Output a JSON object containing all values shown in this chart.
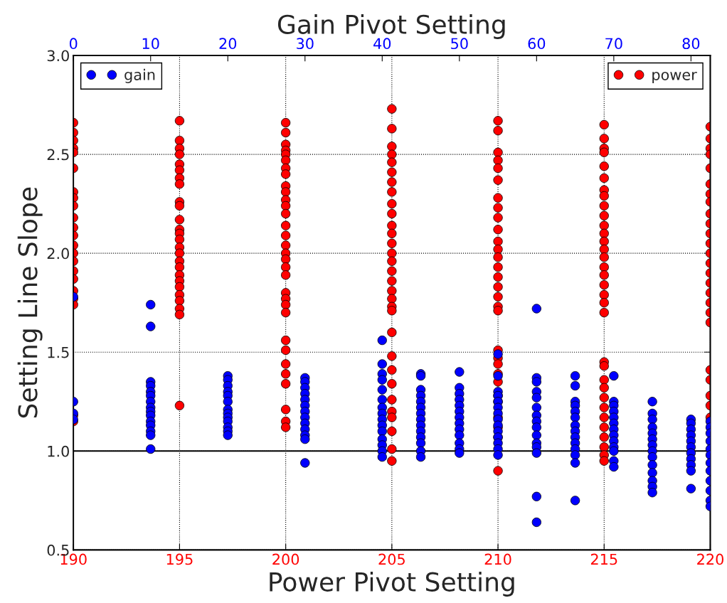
{
  "chart_data": {
    "type": "scatter",
    "xlabel": "Power Pivot Setting",
    "x2label": "Gain Pivot Setting",
    "ylabel": "Setting Line Slope",
    "xlim": [
      190,
      220
    ],
    "xticks": [
      190,
      195,
      200,
      205,
      210,
      215,
      220
    ],
    "x2lim": [
      0,
      82.5
    ],
    "x2ticks": [
      0,
      10,
      20,
      30,
      40,
      50,
      60,
      70,
      80
    ],
    "ylim": [
      0.5,
      3.0
    ],
    "yticks": [
      0.5,
      {
        "value": 1,
        "label": "1.0"
      },
      1.5,
      {
        "value": 2,
        "label": "2.0"
      },
      2.5,
      {
        "value": 3,
        "label": "3.0"
      }
    ],
    "grid": true,
    "legend": "top",
    "marker": "circle",
    "ref_lines": [
      {
        "axis": "y",
        "value": 1.0,
        "color": "#000000",
        "line_style": "solid"
      }
    ],
    "series": [
      {
        "name": "power",
        "color": "#ff0000",
        "x": [
          190,
          190,
          190,
          190,
          190,
          190,
          190,
          190,
          190,
          190,
          190,
          190,
          190,
          190,
          190,
          190,
          190,
          190,
          190,
          190,
          190,
          190,
          195,
          195,
          195,
          195,
          195,
          195,
          195,
          195,
          195,
          195,
          195,
          195,
          195,
          195,
          195,
          195,
          195,
          195,
          195,
          195,
          195,
          195,
          195,
          195,
          195,
          195,
          200,
          200,
          200,
          200,
          200,
          200,
          200,
          200,
          200,
          200,
          200,
          200,
          200,
          200,
          200,
          200,
          200,
          200,
          200,
          200,
          200,
          200,
          200,
          200,
          200,
          200,
          200,
          200,
          200,
          200,
          200,
          200,
          205,
          205,
          205,
          205,
          205,
          205,
          205,
          205,
          205,
          205,
          205,
          205,
          205,
          205,
          205,
          205,
          205,
          205,
          205,
          205,
          205,
          205,
          205,
          205,
          205,
          205,
          205,
          205,
          205,
          205,
          205,
          210,
          210,
          210,
          210,
          210,
          210,
          210,
          210,
          210,
          210,
          210,
          210,
          210,
          210,
          210,
          210,
          210,
          210,
          210,
          210,
          210,
          210,
          210,
          210,
          210,
          210,
          210,
          210,
          210,
          210,
          215,
          215,
          215,
          215,
          215,
          215,
          215,
          215,
          215,
          215,
          215,
          215,
          215,
          215,
          215,
          215,
          215,
          215,
          215,
          215,
          215,
          215,
          215,
          215,
          215,
          215,
          215,
          215,
          215,
          215,
          215,
          215,
          215,
          220,
          220,
          220,
          220,
          220,
          220,
          220,
          220,
          220,
          220,
          220,
          220,
          220,
          220,
          220,
          220,
          220,
          220,
          220,
          220,
          220,
          220,
          220,
          220,
          220
        ],
        "values": [
          2.66,
          2.61,
          2.57,
          2.53,
          2.51,
          2.43,
          2.31,
          2.28,
          2.24,
          2.18,
          2.13,
          2.09,
          2.04,
          2.0,
          1.96,
          1.91,
          1.87,
          1.81,
          1.77,
          1.74,
          1.18,
          1.15,
          2.67,
          2.57,
          2.53,
          2.5,
          2.45,
          2.42,
          2.38,
          2.35,
          2.26,
          2.24,
          2.17,
          2.12,
          2.1,
          2.07,
          2.03,
          2.0,
          1.96,
          1.93,
          1.89,
          1.86,
          1.83,
          1.79,
          1.76,
          1.72,
          1.69,
          1.23,
          2.66,
          2.61,
          2.55,
          2.52,
          2.5,
          2.47,
          2.43,
          2.4,
          2.34,
          2.31,
          2.27,
          2.24,
          2.2,
          2.14,
          2.09,
          2.04,
          2.0,
          1.97,
          1.93,
          1.89,
          1.8,
          1.77,
          1.74,
          1.7,
          1.56,
          1.51,
          1.44,
          1.39,
          1.34,
          1.21,
          1.15,
          1.12,
          2.73,
          2.63,
          2.54,
          2.5,
          2.46,
          2.41,
          2.36,
          2.31,
          2.25,
          2.2,
          2.14,
          2.1,
          2.05,
          2.0,
          1.96,
          1.91,
          1.86,
          1.81,
          1.77,
          1.73,
          1.71,
          1.6,
          1.48,
          1.41,
          1.34,
          1.26,
          1.2,
          1.17,
          1.1,
          1.01,
          0.95,
          2.67,
          2.62,
          2.51,
          2.47,
          2.43,
          2.37,
          2.28,
          2.23,
          2.18,
          2.12,
          2.06,
          2.02,
          1.98,
          1.93,
          1.88,
          1.83,
          1.78,
          1.73,
          1.71,
          1.51,
          1.47,
          1.44,
          1.39,
          1.35,
          1.28,
          1.25,
          1.17,
          1.12,
          1.07,
          0.9,
          2.65,
          2.58,
          2.53,
          2.51,
          2.44,
          2.38,
          2.32,
          2.29,
          2.24,
          2.19,
          2.14,
          2.1,
          2.06,
          2.02,
          1.98,
          1.93,
          1.89,
          1.84,
          1.79,
          1.75,
          1.7,
          1.45,
          1.43,
          1.36,
          1.32,
          1.27,
          1.22,
          1.17,
          1.12,
          1.07,
          1.02,
          0.98,
          0.95,
          2.64,
          2.58,
          2.53,
          2.5,
          2.43,
          2.35,
          2.3,
          2.26,
          2.2,
          2.15,
          2.1,
          2.05,
          2.0,
          1.95,
          1.9,
          1.85,
          1.8,
          1.75,
          1.7,
          1.65,
          1.41,
          1.36,
          1.28,
          1.23,
          1.17
        ]
      },
      {
        "name": "gain",
        "color": "#0000ff",
        "axis": "x2",
        "x": [
          0,
          0,
          0,
          0,
          10,
          10,
          10,
          10,
          10,
          10,
          10,
          10,
          10,
          10,
          10,
          10,
          10,
          10,
          10,
          20,
          20,
          20,
          20,
          20,
          20,
          20,
          20,
          20,
          20,
          20,
          20,
          20,
          30,
          30,
          30,
          30,
          30,
          30,
          30,
          30,
          30,
          30,
          30,
          30,
          30,
          40,
          40,
          40,
          40,
          40,
          40,
          40,
          40,
          40,
          40,
          40,
          40,
          40,
          40,
          40,
          45,
          45,
          45,
          45,
          45,
          45,
          45,
          45,
          45,
          45,
          45,
          45,
          45,
          45,
          50,
          50,
          50,
          50,
          50,
          50,
          50,
          50,
          50,
          50,
          50,
          50,
          50,
          55,
          55,
          55,
          55,
          55,
          55,
          55,
          55,
          55,
          55,
          55,
          55,
          55,
          55,
          60,
          60,
          60,
          60,
          60,
          60,
          60,
          60,
          60,
          60,
          60,
          60,
          60,
          60,
          60,
          65,
          65,
          65,
          65,
          65,
          65,
          65,
          65,
          65,
          65,
          65,
          65,
          65,
          65,
          70,
          70,
          70,
          70,
          70,
          70,
          70,
          70,
          70,
          70,
          70,
          70,
          70,
          75,
          75,
          75,
          75,
          75,
          75,
          75,
          75,
          75,
          75,
          75,
          75,
          75,
          75,
          80,
          80,
          80,
          80,
          80,
          80,
          80,
          80,
          80,
          80,
          80,
          82.5,
          82.5,
          82.5,
          82.5,
          82.5,
          82.5,
          82.5,
          82.5,
          82.5,
          82.5,
          82.5,
          82.5
        ],
        "values": [
          1.78,
          1.25,
          1.19,
          1.16,
          1.74,
          1.63,
          1.35,
          1.33,
          1.3,
          1.28,
          1.25,
          1.22,
          1.2,
          1.18,
          1.15,
          1.13,
          1.1,
          1.08,
          1.01,
          1.38,
          1.36,
          1.33,
          1.3,
          1.28,
          1.25,
          1.21,
          1.19,
          1.17,
          1.15,
          1.12,
          1.1,
          1.08,
          1.37,
          1.35,
          1.32,
          1.29,
          1.26,
          1.23,
          1.2,
          1.17,
          1.14,
          1.11,
          1.08,
          1.06,
          0.94,
          1.56,
          1.44,
          1.39,
          1.36,
          1.31,
          1.26,
          1.22,
          1.19,
          1.16,
          1.13,
          1.1,
          1.06,
          1.03,
          1.0,
          0.97,
          1.39,
          1.38,
          1.31,
          1.28,
          1.25,
          1.22,
          1.19,
          1.16,
          1.13,
          1.1,
          1.07,
          1.04,
          1.0,
          0.97,
          1.4,
          1.32,
          1.29,
          1.26,
          1.23,
          1.2,
          1.17,
          1.14,
          1.11,
          1.08,
          1.04,
          1.01,
          0.99,
          1.49,
          1.38,
          1.3,
          1.28,
          1.25,
          1.22,
          1.19,
          1.16,
          1.13,
          1.1,
          1.07,
          1.04,
          1.01,
          0.98,
          1.72,
          1.37,
          1.35,
          1.3,
          1.27,
          1.22,
          1.18,
          1.15,
          1.12,
          1.08,
          1.04,
          1.02,
          0.99,
          0.77,
          0.64,
          1.38,
          1.33,
          1.25,
          1.23,
          1.2,
          1.17,
          1.13,
          1.1,
          1.07,
          1.04,
          1.01,
          0.98,
          0.94,
          0.75,
          1.38,
          1.25,
          1.23,
          1.2,
          1.17,
          1.14,
          1.11,
          1.08,
          1.05,
          1.02,
          1.0,
          0.95,
          0.92,
          1.25,
          1.19,
          1.16,
          1.12,
          1.09,
          1.06,
          1.03,
          1.0,
          0.97,
          0.93,
          0.89,
          0.85,
          0.82,
          0.79,
          1.16,
          1.14,
          1.11,
          1.08,
          1.05,
          1.02,
          0.99,
          0.96,
          0.93,
          0.9,
          0.81,
          1.15,
          1.12,
          1.09,
          1.05,
          1.01,
          0.98,
          0.94,
          0.9,
          0.85,
          0.8,
          0.75,
          0.72
        ]
      }
    ]
  }
}
